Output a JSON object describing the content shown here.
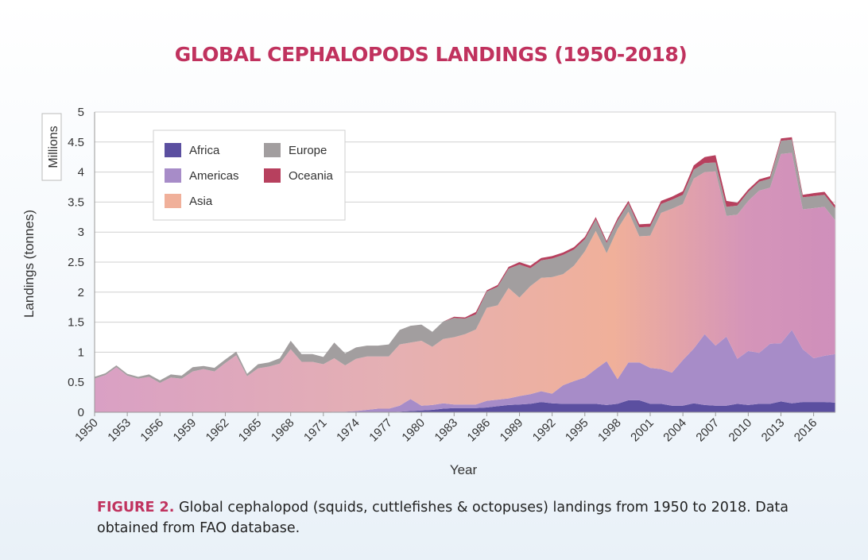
{
  "chart_data": {
    "type": "area",
    "title": "GLOBAL CEPHALOPODS LANDINGS (1950-2018)",
    "xlabel": "Year",
    "ylabel": "Landings (tonnes)",
    "y_unit": "Millions",
    "ylim": [
      0,
      5
    ],
    "yticks": [
      "0",
      "0.5",
      "1",
      "1.5",
      "2",
      "2.5",
      "3",
      "3.5",
      "4",
      "4.5",
      "5"
    ],
    "xlim": [
      1950,
      2018
    ],
    "xticks": [
      "1950",
      "1953",
      "1956",
      "1959",
      "1962",
      "1965",
      "1968",
      "1971",
      "1974",
      "1977",
      "1980",
      "1983",
      "1986",
      "1989",
      "1992",
      "1995",
      "1998",
      "2001",
      "2004",
      "2007",
      "2010",
      "2013",
      "2016"
    ],
    "grid": "horizontal",
    "stacked": true,
    "legend_position": "top-left",
    "x": [
      1950,
      1951,
      1952,
      1953,
      1954,
      1955,
      1956,
      1957,
      1958,
      1959,
      1960,
      1961,
      1962,
      1963,
      1964,
      1965,
      1966,
      1967,
      1968,
      1969,
      1970,
      1971,
      1972,
      1973,
      1974,
      1975,
      1976,
      1977,
      1978,
      1979,
      1980,
      1981,
      1982,
      1983,
      1984,
      1985,
      1986,
      1987,
      1988,
      1989,
      1990,
      1991,
      1992,
      1993,
      1994,
      1995,
      1996,
      1997,
      1998,
      1999,
      2000,
      2001,
      2002,
      2003,
      2004,
      2005,
      2006,
      2007,
      2008,
      2009,
      2010,
      2011,
      2012,
      2013,
      2014,
      2015,
      2016,
      2017,
      2018
    ],
    "series": [
      {
        "name": "Africa",
        "color": "#5b4fa0",
        "values": [
          0,
          0,
          0,
          0,
          0,
          0,
          0,
          0,
          0,
          0,
          0,
          0,
          0,
          0,
          0,
          0,
          0,
          0,
          0,
          0,
          0,
          0,
          0,
          0,
          0,
          0,
          0,
          0,
          0.01,
          0.02,
          0.03,
          0.04,
          0.06,
          0.07,
          0.07,
          0.07,
          0.08,
          0.1,
          0.12,
          0.13,
          0.14,
          0.17,
          0.15,
          0.14,
          0.14,
          0.14,
          0.14,
          0.12,
          0.14,
          0.2,
          0.2,
          0.14,
          0.14,
          0.11,
          0.11,
          0.15,
          0.12,
          0.11,
          0.11,
          0.14,
          0.12,
          0.14,
          0.14,
          0.18,
          0.15,
          0.17,
          0.17,
          0.17,
          0.16
        ]
      },
      {
        "name": "Americas",
        "color": "#a78cc8",
        "values": [
          0,
          0,
          0,
          0,
          0,
          0,
          0,
          0,
          0,
          0,
          0,
          0,
          0,
          0,
          0,
          0,
          0,
          0,
          0,
          0,
          0,
          0,
          0.01,
          0.01,
          0.02,
          0.04,
          0.06,
          0.06,
          0.1,
          0.2,
          0.08,
          0.08,
          0.09,
          0.06,
          0.06,
          0.06,
          0.11,
          0.11,
          0.11,
          0.14,
          0.16,
          0.18,
          0.16,
          0.31,
          0.38,
          0.44,
          0.58,
          0.73,
          0.41,
          0.63,
          0.63,
          0.6,
          0.58,
          0.55,
          0.76,
          0.91,
          1.18,
          1.0,
          1.15,
          0.75,
          0.9,
          0.85,
          1.0,
          0.97,
          1.22,
          0.88,
          0.73,
          0.77,
          0.81
        ]
      },
      {
        "name": "Asia",
        "color": "#f0b09a",
        "values": [
          0.56,
          0.62,
          0.75,
          0.61,
          0.56,
          0.59,
          0.49,
          0.58,
          0.56,
          0.68,
          0.72,
          0.68,
          0.82,
          0.95,
          0.6,
          0.73,
          0.76,
          0.81,
          1.05,
          0.84,
          0.84,
          0.8,
          0.89,
          0.77,
          0.87,
          0.89,
          0.87,
          0.87,
          1.02,
          0.94,
          1.08,
          0.97,
          1.07,
          1.12,
          1.17,
          1.25,
          1.55,
          1.57,
          1.84,
          1.64,
          1.8,
          1.89,
          1.94,
          1.85,
          1.92,
          2.1,
          2.3,
          1.8,
          2.5,
          2.51,
          2.1,
          2.2,
          2.6,
          2.73,
          2.6,
          2.83,
          2.7,
          2.9,
          2.01,
          2.4,
          2.5,
          2.7,
          2.6,
          3.15,
          2.95,
          2.33,
          2.5,
          2.48,
          2.22
        ]
      },
      {
        "name": "Europe",
        "color": "#a29e9f",
        "values": [
          0.03,
          0.03,
          0.03,
          0.03,
          0.03,
          0.04,
          0.04,
          0.05,
          0.05,
          0.07,
          0.05,
          0.06,
          0.06,
          0.06,
          0.04,
          0.07,
          0.07,
          0.09,
          0.14,
          0.13,
          0.13,
          0.12,
          0.26,
          0.2,
          0.19,
          0.18,
          0.18,
          0.2,
          0.24,
          0.28,
          0.27,
          0.25,
          0.29,
          0.32,
          0.26,
          0.25,
          0.27,
          0.31,
          0.32,
          0.55,
          0.3,
          0.29,
          0.31,
          0.32,
          0.27,
          0.2,
          0.19,
          0.17,
          0.14,
          0.14,
          0.15,
          0.15,
          0.15,
          0.15,
          0.15,
          0.15,
          0.15,
          0.15,
          0.15,
          0.15,
          0.15,
          0.15,
          0.15,
          0.22,
          0.22,
          0.2,
          0.2,
          0.2,
          0.2
        ]
      },
      {
        "name": "Oceania",
        "color": "#b7405e",
        "values": [
          0,
          0,
          0,
          0,
          0,
          0,
          0,
          0,
          0,
          0,
          0,
          0,
          0,
          0,
          0,
          0,
          0,
          0,
          0,
          0,
          0,
          0,
          0,
          0,
          0,
          0,
          0,
          0,
          0,
          0,
          0,
          0,
          0,
          0.02,
          0.02,
          0.04,
          0.02,
          0.03,
          0.03,
          0.04,
          0.04,
          0.04,
          0.04,
          0.04,
          0.04,
          0.04,
          0.04,
          0.03,
          0.04,
          0.04,
          0.05,
          0.05,
          0.05,
          0.05,
          0.06,
          0.07,
          0.1,
          0.12,
          0.1,
          0.05,
          0.04,
          0.04,
          0.04,
          0.04,
          0.04,
          0.04,
          0.05,
          0.05,
          0.05
        ]
      }
    ],
    "colors": {
      "title": "#c0325e",
      "caption_label": "#c0325e",
      "axis_text": "#333333",
      "grid": "#d0d0d0"
    }
  },
  "caption": {
    "label": "FIGURE 2.",
    "text": "Global cephalopod (squids, cuttlefishes & octopuses) landings from 1950 to 2018. Data obtained from FAO database."
  }
}
